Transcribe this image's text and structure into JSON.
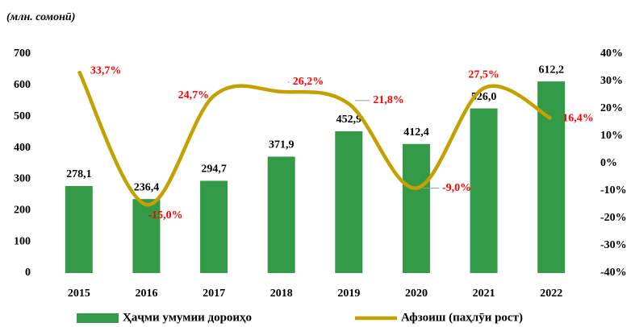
{
  "chart_data": {
    "type": "bar_line",
    "unit_note": "(млн. сомонӣ)",
    "categories": [
      "2015",
      "2016",
      "2017",
      "2018",
      "2019",
      "2020",
      "2021",
      "2022"
    ],
    "series": [
      {
        "name": "Ҳаҷми умумии дороиҳо",
        "color": "#339a48",
        "type": "bar",
        "values": [
          278.1,
          236.4,
          294.7,
          371.9,
          452.9,
          412.4,
          526.0,
          612.2
        ],
        "value_labels": [
          "278,1",
          "236,4",
          "294,7",
          "371,9",
          "452,9",
          "412,4",
          "526,0",
          "612,2"
        ]
      },
      {
        "name": "Афзоиш (паҳлӯи рост)",
        "color": "#c4a000",
        "type": "line",
        "axis": "y2",
        "values": [
          33.7,
          -15.0,
          24.7,
          26.2,
          21.8,
          -9.0,
          27.5,
          16.4
        ],
        "value_labels": [
          "33,7%",
          "-15,0%",
          "24,7%",
          "26,2%",
          "21,8%",
          "-9,0%",
          "27,5%",
          "16,4%"
        ]
      }
    ],
    "ylim": [
      0,
      700
    ],
    "yticks": [
      0,
      100,
      200,
      300,
      400,
      500,
      600,
      700
    ],
    "y2lim": [
      -40,
      40
    ],
    "y2ticks": [
      {
        "value": -40,
        "label": "-40%"
      },
      {
        "value": -30,
        "label": "-30%"
      },
      {
        "value": -20,
        "label": "-20%"
      },
      {
        "value": -10,
        "label": "-10%"
      },
      {
        "value": 0,
        "label": "0%"
      },
      {
        "value": 10,
        "label": "10%"
      },
      {
        "value": 20,
        "label": "20%"
      },
      {
        "value": 30,
        "label": "30%"
      },
      {
        "value": 40,
        "label": "40%"
      }
    ],
    "legend": "bottom",
    "grid": false
  }
}
